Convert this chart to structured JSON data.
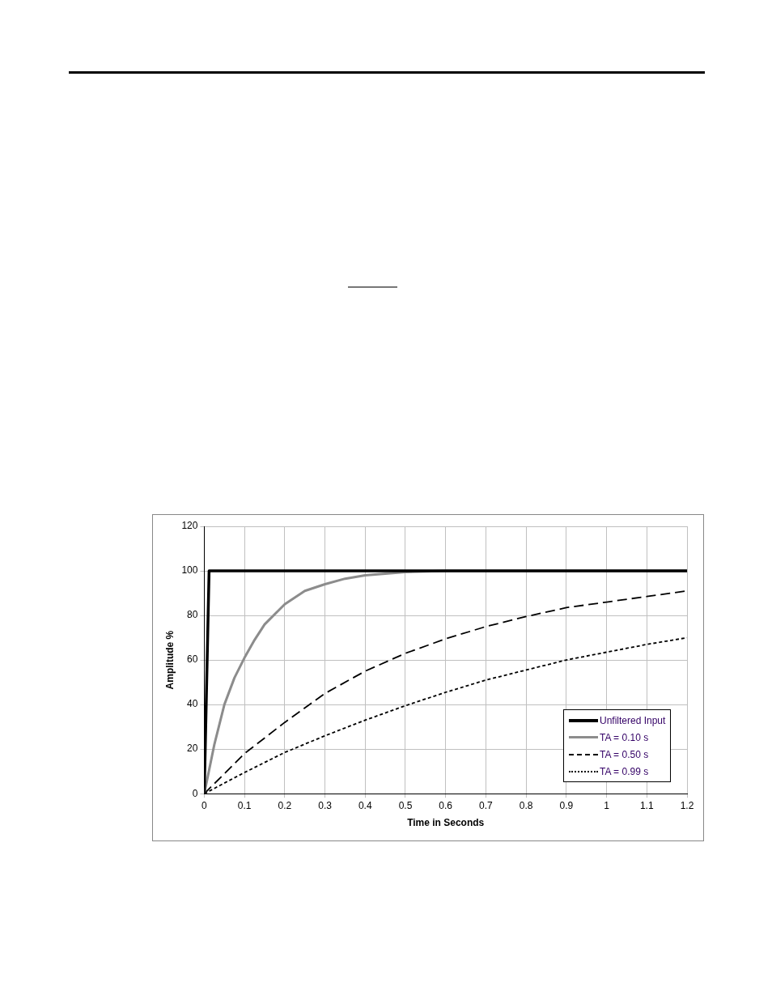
{
  "chart_data": {
    "type": "line",
    "xlabel": "Time in Seconds",
    "ylabel": "Amplitude %",
    "xlim": [
      0,
      1.2
    ],
    "xticks": [
      0,
      0.1,
      0.2,
      0.3,
      0.4,
      0.5,
      0.6,
      0.7,
      0.8,
      0.9,
      1,
      1.1,
      1.2
    ],
    "ylim": [
      0,
      120
    ],
    "yticks": [
      0,
      20,
      40,
      60,
      80,
      100,
      120
    ],
    "grid": true,
    "legend": "bottom right",
    "marker": "none",
    "series": [
      {
        "name": "Unfiltered Input",
        "color": "#000000",
        "line_style": "solid",
        "x": [
          0,
          0.012,
          0.02,
          1.2
        ],
        "values": [
          0,
          100,
          100,
          100
        ]
      },
      {
        "name": "TA = 0.10 s",
        "color": "#8c8c8c",
        "line_style": "solid",
        "x": [
          0,
          0.025,
          0.05,
          0.075,
          0.1,
          0.125,
          0.15,
          0.2,
          0.25,
          0.3,
          0.35,
          0.4,
          0.5,
          0.6,
          0.8,
          1,
          1.2
        ],
        "values": [
          0,
          22,
          40,
          52,
          61,
          69,
          76,
          85,
          91,
          94,
          96.5,
          98,
          99.5,
          100,
          100,
          100,
          100
        ]
      },
      {
        "name": "TA = 0.50 s",
        "color": "#000000",
        "line_style": "dashed",
        "x": [
          0,
          0.1,
          0.2,
          0.3,
          0.4,
          0.5,
          0.6,
          0.7,
          0.8,
          0.9,
          1,
          1.1,
          1.2
        ],
        "values": [
          0,
          18,
          32,
          45,
          55,
          63,
          69.5,
          75,
          79.5,
          83.5,
          86,
          88.5,
          91
        ]
      },
      {
        "name": "TA = 0.99 s",
        "color": "#000000",
        "line_style": "dotted",
        "x": [
          0,
          0.1,
          0.2,
          0.3,
          0.4,
          0.5,
          0.6,
          0.7,
          0.8,
          0.9,
          1,
          1.1,
          1.2
        ],
        "values": [
          0,
          9.5,
          18.5,
          26,
          33,
          39.5,
          45.5,
          51,
          55.5,
          60,
          63.5,
          67,
          70
        ]
      }
    ]
  }
}
